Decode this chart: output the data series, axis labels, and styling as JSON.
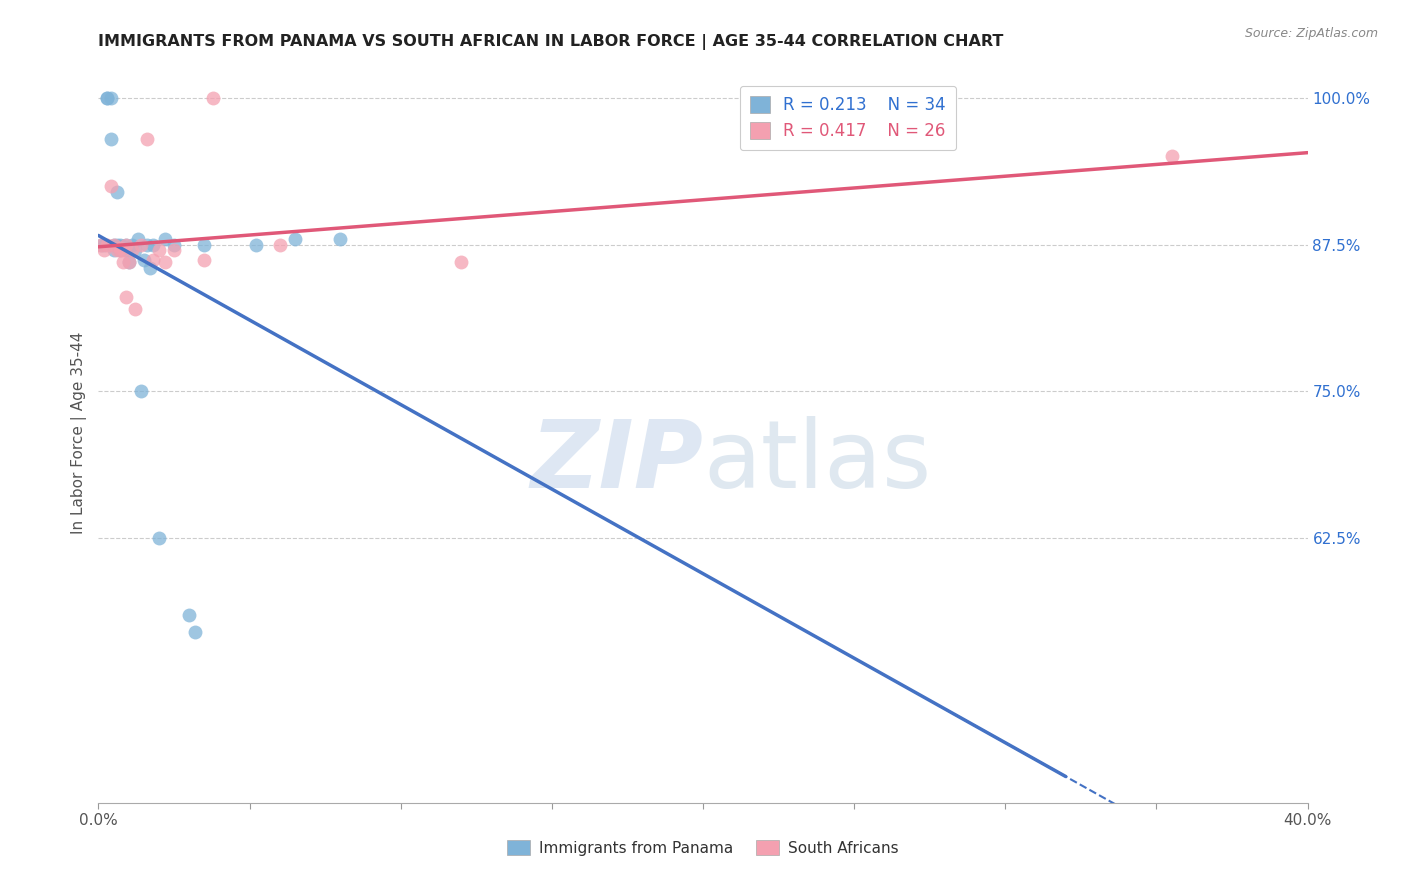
{
  "title": "IMMIGRANTS FROM PANAMA VS SOUTH AFRICAN IN LABOR FORCE | AGE 35-44 CORRELATION CHART",
  "source": "Source: ZipAtlas.com",
  "ylabel": "In Labor Force | Age 35-44",
  "xlim": [
    0.0,
    0.4
  ],
  "ylim": [
    0.4,
    1.03
  ],
  "yticks_right": [
    0.625,
    0.75,
    0.875,
    1.0
  ],
  "ytick_right_labels": [
    "62.5%",
    "75.0%",
    "87.5%",
    "100.0%"
  ],
  "legend_blue_r": "0.213",
  "legend_blue_n": "34",
  "legend_pink_r": "0.417",
  "legend_pink_n": "26",
  "legend_label_blue": "Immigrants from Panama",
  "legend_label_pink": "South Africans",
  "blue_color": "#7FB3D8",
  "pink_color": "#F4A0B0",
  "blue_line_color": "#4472C4",
  "pink_line_color": "#E05878",
  "panama_x": [
    0.001,
    0.002,
    0.003,
    0.003,
    0.004,
    0.004,
    0.005,
    0.005,
    0.006,
    0.006,
    0.007,
    0.007,
    0.008,
    0.008,
    0.009,
    0.009,
    0.01,
    0.011,
    0.012,
    0.013,
    0.014,
    0.015,
    0.016,
    0.017,
    0.018,
    0.02,
    0.022,
    0.025,
    0.03,
    0.032,
    0.035,
    0.052,
    0.065,
    0.08
  ],
  "panama_y": [
    0.875,
    0.875,
    1.0,
    1.0,
    1.0,
    0.965,
    0.875,
    0.87,
    0.875,
    0.92,
    0.875,
    0.87,
    0.872,
    0.874,
    0.87,
    0.875,
    0.86,
    0.875,
    0.87,
    0.88,
    0.75,
    0.862,
    0.875,
    0.855,
    0.875,
    0.625,
    0.88,
    0.875,
    0.56,
    0.545,
    0.875,
    0.875,
    0.88,
    0.88
  ],
  "sa_x": [
    0.001,
    0.002,
    0.003,
    0.004,
    0.005,
    0.006,
    0.007,
    0.007,
    0.008,
    0.008,
    0.009,
    0.009,
    0.01,
    0.011,
    0.012,
    0.014,
    0.016,
    0.018,
    0.02,
    0.022,
    0.025,
    0.035,
    0.038,
    0.06,
    0.12,
    0.355
  ],
  "sa_y": [
    0.875,
    0.87,
    0.875,
    0.925,
    0.875,
    0.87,
    0.872,
    0.87,
    0.87,
    0.86,
    0.875,
    0.83,
    0.86,
    0.87,
    0.82,
    0.875,
    0.965,
    0.862,
    0.87,
    0.86,
    0.87,
    0.862,
    1.0,
    0.875,
    0.86,
    0.95
  ]
}
